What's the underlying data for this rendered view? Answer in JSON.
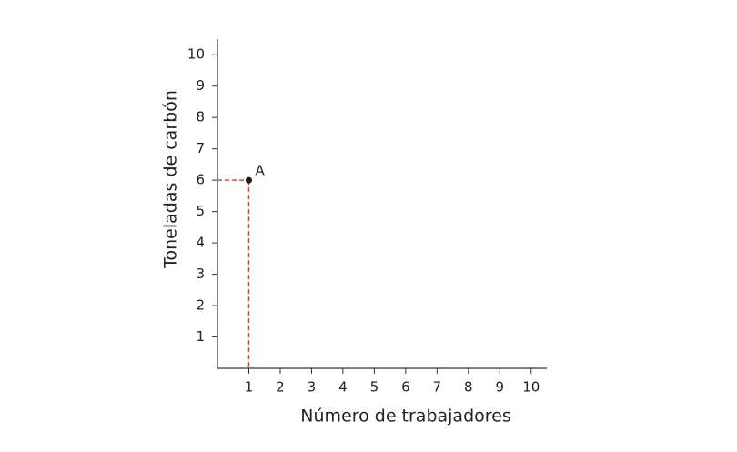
{
  "chart_data": {
    "type": "scatter",
    "xlabel": "Número de trabajadores",
    "ylabel": "Toneladas de carbón",
    "x": [
      1
    ],
    "values": [
      6
    ],
    "point_labels": [
      "A"
    ],
    "color": "#1a1a1a",
    "guide_color": "#d9472b",
    "guides": true,
    "xlim": [
      0,
      10.5
    ],
    "ylim": [
      0,
      10.5
    ],
    "xticks": [
      1,
      2,
      3,
      4,
      5,
      6,
      7,
      8,
      9,
      10
    ],
    "yticks": [
      1,
      2,
      3,
      4,
      5,
      6,
      7,
      8,
      9,
      10
    ]
  }
}
